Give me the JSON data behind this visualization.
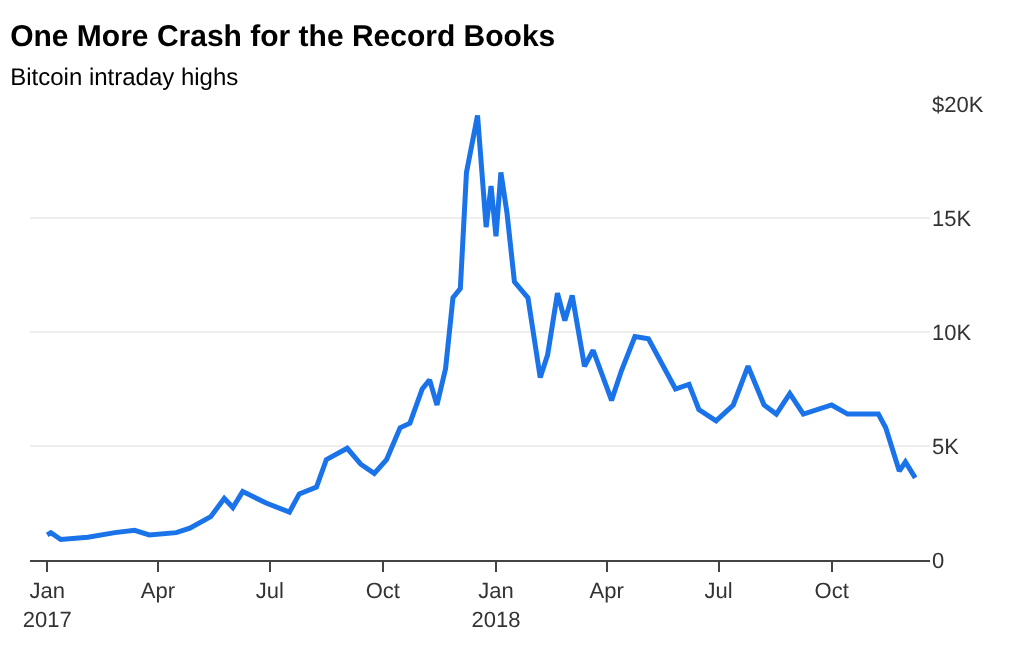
{
  "chart_data": {
    "type": "line",
    "title": "One More Crash for the Record Books",
    "subtitle": "Bitcoin intraday highs",
    "x": [
      "2017-01-01",
      "2017-01-04",
      "2017-01-12",
      "2017-02-03",
      "2017-02-25",
      "2017-03-13",
      "2017-03-25",
      "2017-04-16",
      "2017-04-27",
      "2017-05-14",
      "2017-05-25",
      "2017-06-01",
      "2017-06-09",
      "2017-06-28",
      "2017-07-17",
      "2017-07-25",
      "2017-08-08",
      "2017-08-16",
      "2017-09-02",
      "2017-09-13",
      "2017-09-24",
      "2017-10-04",
      "2017-10-15",
      "2017-10-23",
      "2017-11-02",
      "2017-11-08",
      "2017-11-14",
      "2017-11-21",
      "2017-11-27",
      "2017-12-03",
      "2017-12-08",
      "2017-12-17",
      "2017-12-24",
      "2017-12-28",
      "2018-01-01",
      "2018-01-05",
      "2018-01-10",
      "2018-01-16",
      "2018-01-27",
      "2018-02-06",
      "2018-02-12",
      "2018-02-20",
      "2018-02-26",
      "2018-03-04",
      "2018-03-14",
      "2018-03-21",
      "2018-04-05",
      "2018-04-13",
      "2018-04-24",
      "2018-05-05",
      "2018-05-27",
      "2018-06-07",
      "2018-06-15",
      "2018-06-29",
      "2018-07-13",
      "2018-07-25",
      "2018-08-07",
      "2018-08-17",
      "2018-08-28",
      "2018-09-08",
      "2018-10-01",
      "2018-10-14",
      "2018-11-08",
      "2018-11-14",
      "2018-11-25",
      "2018-11-30",
      "2018-12-08"
    ],
    "series": [
      {
        "color": "#1a73e8",
        "values": [
          1100,
          1200,
          900,
          1000,
          1200,
          1300,
          1100,
          1200,
          1400,
          1900,
          2700,
          2300,
          3000,
          2500,
          2100,
          2900,
          3200,
          4400,
          4900,
          4200,
          3800,
          4400,
          5800,
          6000,
          7500,
          7900,
          6800,
          8400,
          11500,
          11900,
          17000,
          19500,
          14600,
          16400,
          14200,
          17000,
          15200,
          12200,
          11500,
          8000,
          9000,
          11700,
          10500,
          11600,
          8500,
          9200,
          7000,
          8300,
          9800,
          9700,
          7500,
          7700,
          6600,
          6100,
          6800,
          8500,
          6800,
          6400,
          7300,
          6400,
          6800,
          6400,
          6400,
          5800,
          3900,
          4300,
          3600
        ]
      }
    ],
    "xlim": [
      "2016-12-18",
      "2018-12-20"
    ],
    "xticks": [
      {
        "value": "2017-01-01",
        "label": "Jan\n2017"
      },
      {
        "value": "2017-04-01",
        "label": "Apr"
      },
      {
        "value": "2017-07-01",
        "label": "Jul"
      },
      {
        "value": "2017-10-01",
        "label": "Oct"
      },
      {
        "value": "2018-01-01",
        "label": "Jan\n2018"
      },
      {
        "value": "2018-04-01",
        "label": "Apr"
      },
      {
        "value": "2018-07-01",
        "label": "Jul"
      },
      {
        "value": "2018-10-01",
        "label": "Oct"
      }
    ],
    "ylim": [
      0,
      20000
    ],
    "yticks": [
      0,
      {
        "value": 5000,
        "label": "5K"
      },
      {
        "value": 10000,
        "label": "10K"
      },
      {
        "value": 15000,
        "label": "15K"
      },
      {
        "value": 20000,
        "label": "$20K"
      }
    ],
    "grid": "y",
    "marker": "none",
    "line_style": "solid"
  }
}
